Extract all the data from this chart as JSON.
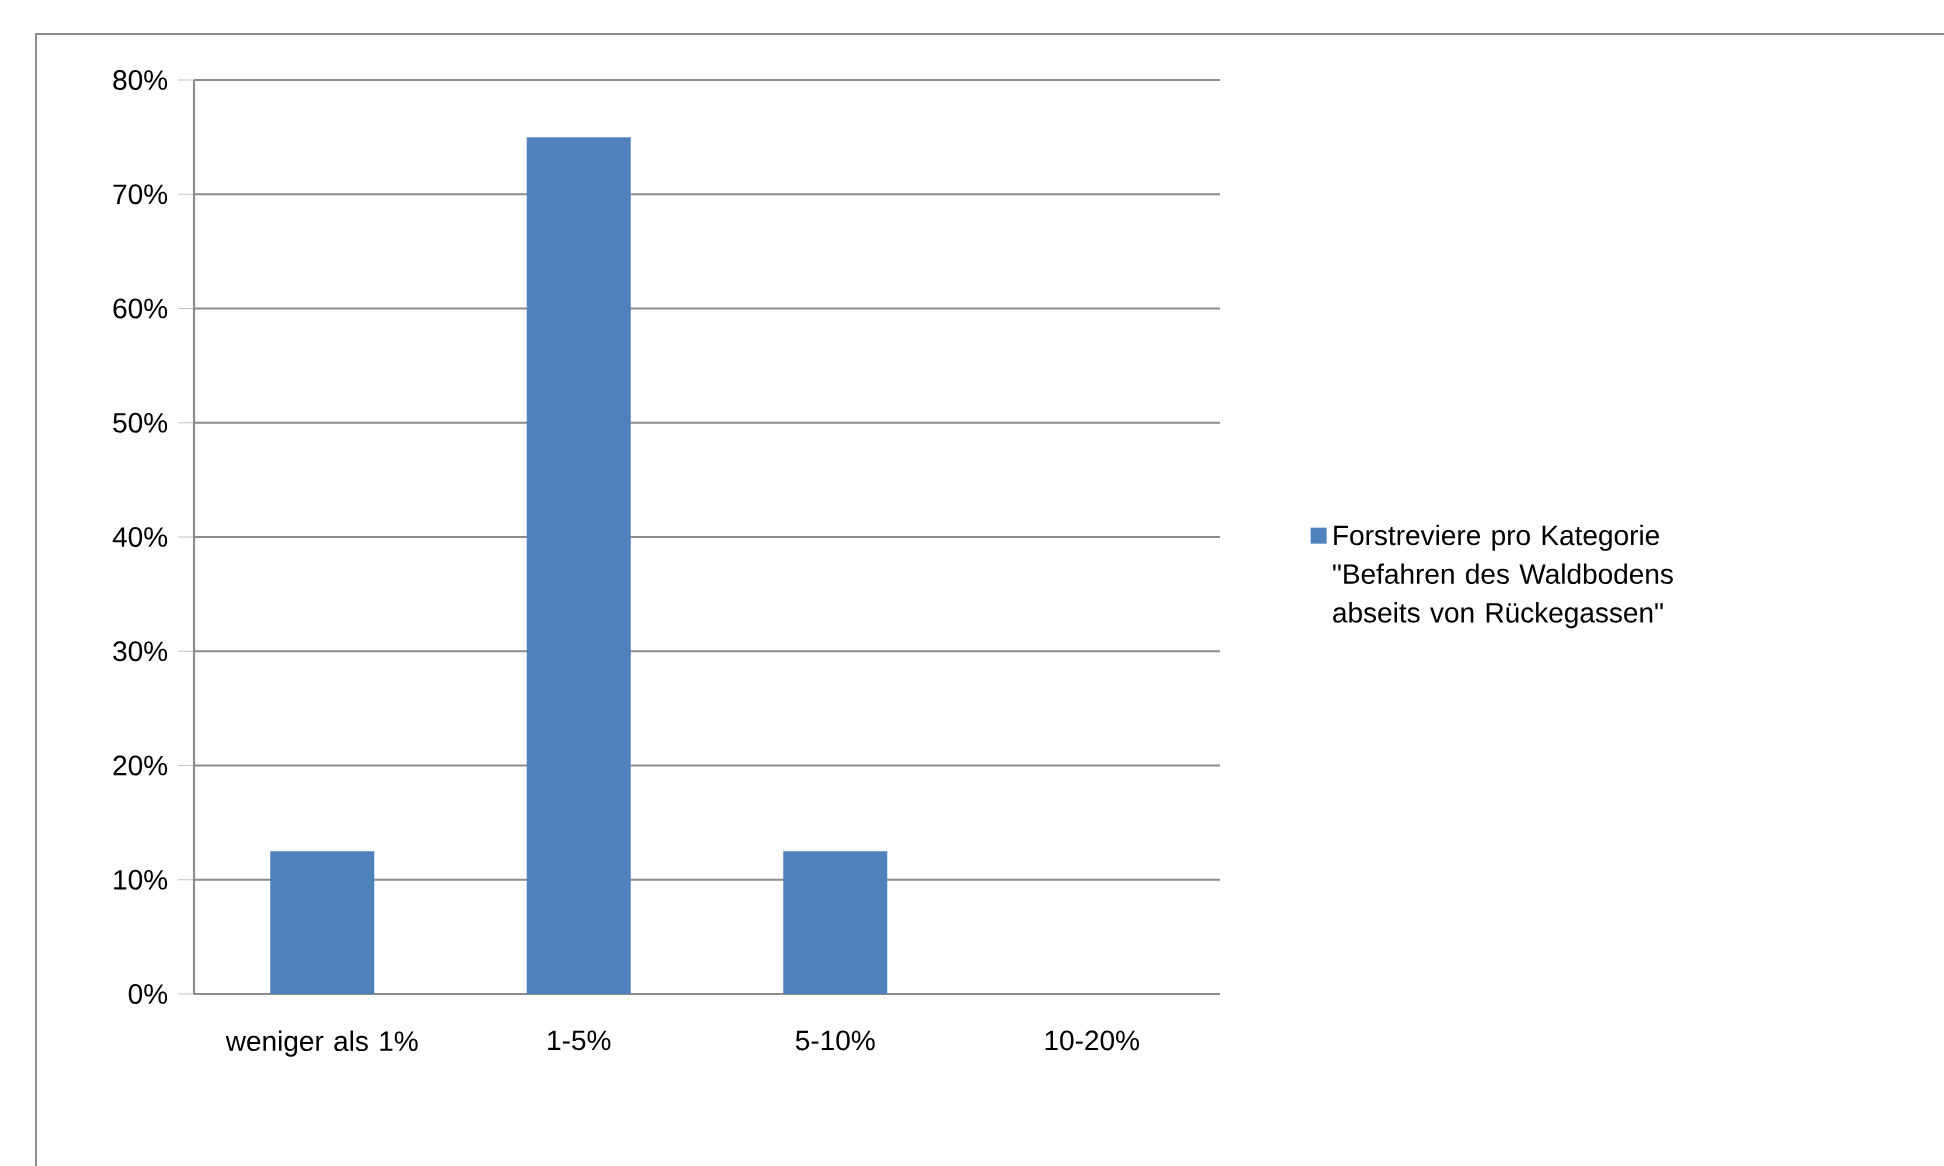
{
  "chart_data": {
    "type": "bar",
    "categories": [
      "weniger als 1%",
      "1-5%",
      "5-10%",
      "10-20%"
    ],
    "series": [
      {
        "name": "Forstreviere pro Kategorie \"Befahren des Waldbodens abseits von Rückegassen\"",
        "color": "#4f81bd",
        "values": [
          12.5,
          75,
          12.5,
          0
        ]
      }
    ],
    "ylim": [
      0,
      80
    ],
    "yticks": [
      {
        "value": 0,
        "label": "0%"
      },
      {
        "value": 10,
        "label": "10%"
      },
      {
        "value": 20,
        "label": "20%"
      },
      {
        "value": 30,
        "label": "30%"
      },
      {
        "value": 40,
        "label": "40%"
      },
      {
        "value": 50,
        "label": "50%"
      },
      {
        "value": 60,
        "label": "60%"
      },
      {
        "value": 70,
        "label": "70%"
      },
      {
        "value": 80,
        "label": "80%"
      }
    ],
    "grid": "y",
    "legend": "right"
  }
}
